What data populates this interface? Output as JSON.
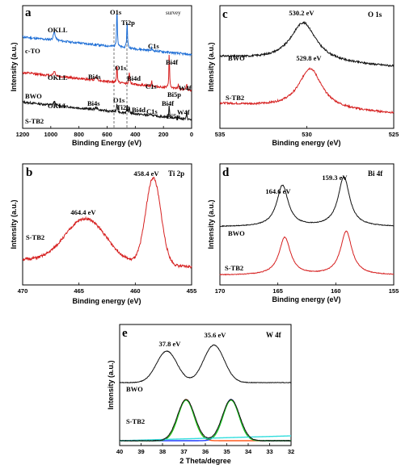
{
  "chart_data": [
    {
      "id": "a",
      "type": "line",
      "panel_label": "a",
      "corner_label": "survey",
      "xlabel": "Binding Energy (eV)",
      "ylabel": "Intensity (a.u.)",
      "xlim": [
        1200,
        0
      ],
      "ylim": [
        0,
        10
      ],
      "x_ticks": [
        1200,
        1000,
        800,
        600,
        400,
        200,
        0
      ],
      "reference_lines": [
        530,
        458
      ],
      "series": [
        {
          "name": "c-TO",
          "color": "#1f6fd6",
          "offset": 6.0,
          "peaks": [
            {
              "label": "OKLL",
              "x": 975,
              "height": 0.7
            },
            {
              "label": "O1s",
              "x": 530,
              "height": 3.3
            },
            {
              "label": "Ti2p",
              "x": 458,
              "height": 2.2
            },
            {
              "label": "C1s",
              "x": 284,
              "height": 0.3
            }
          ]
        },
        {
          "name": "BWO",
          "color": "#d62020",
          "offset": 3.1,
          "peaks": [
            {
              "label": "OKLL",
              "x": 975,
              "height": 0.4
            },
            {
              "label": "Bi4s",
              "x": 678,
              "height": 0.3
            },
            {
              "label": "O1s",
              "x": 530,
              "height": 1.5
            },
            {
              "label": "Bi4d",
              "x": 442,
              "height": 1.0
            },
            {
              "label": "C1s",
              "x": 284,
              "height": 0.5
            },
            {
              "label": "Bi4f",
              "x": 159,
              "height": 3.2
            },
            {
              "label": "Bi5p",
              "x": 95,
              "height": 0.4
            },
            {
              "label": "W4f",
              "x": 35,
              "height": 0.6
            }
          ]
        },
        {
          "name": "S-TB2",
          "color": "#111111",
          "offset": 0.7,
          "peaks": [
            {
              "label": "OKLL",
              "x": 975,
              "height": 0.3
            },
            {
              "label": "Bi4s",
              "x": 678,
              "height": 0.2
            },
            {
              "label": "O1s",
              "x": 530,
              "height": 0.7
            },
            {
              "label": "Ti2p",
              "x": 458,
              "height": 0.6
            },
            {
              "label": "Bi4d",
              "x": 442,
              "height": 0.5
            },
            {
              "label": "C1s",
              "x": 284,
              "height": 0.2
            },
            {
              "label": "Bi4f",
              "x": 159,
              "height": 1.1
            },
            {
              "label": "Bi5p",
              "x": 95,
              "height": 0.2
            },
            {
              "label": "W4f",
              "x": 35,
              "height": 0.6
            }
          ]
        }
      ]
    },
    {
      "id": "c",
      "type": "line",
      "panel_label": "c",
      "corner_label": "O 1s",
      "xlabel": "Binding energy (eV)",
      "ylabel": "Intensity (a.u.)",
      "xlim": [
        535,
        525
      ],
      "ylim": [
        0,
        10
      ],
      "x_ticks": [
        535,
        530,
        525
      ],
      "series": [
        {
          "name": "BWO",
          "color": "#111111",
          "offset": 5.0,
          "peak_x": 530.2,
          "peak_label": "530.2 eV",
          "width": 0.9,
          "height": 3.2
        },
        {
          "name": "S-TB2",
          "color": "#d62020",
          "offset": 1.2,
          "peak_x": 529.8,
          "peak_label": "529.8 eV",
          "width": 0.8,
          "height": 3.3
        }
      ]
    },
    {
      "id": "b",
      "type": "line",
      "panel_label": "b",
      "corner_label": "Ti 2p",
      "xlabel": "Binding energy (eV)",
      "ylabel": "Intensity (a.u.)",
      "xlim": [
        470,
        455
      ],
      "ylim": [
        0,
        10
      ],
      "x_ticks": [
        470,
        465,
        460,
        455
      ],
      "series": [
        {
          "name": "S-TB2",
          "color": "#d62020",
          "offset": 1.5,
          "peaks": [
            {
              "x": 464.4,
              "label": "464.4 eV",
              "width": 1.6,
              "height": 3.6
            },
            {
              "x": 458.4,
              "label": "458.4 eV",
              "width": 0.6,
              "height": 7.2
            }
          ]
        }
      ]
    },
    {
      "id": "d",
      "type": "line",
      "panel_label": "d",
      "corner_label": "Bi 4f",
      "xlabel": "Binding energy (eV)",
      "ylabel": "Intensity (a.u.)",
      "xlim": [
        170,
        155
      ],
      "ylim": [
        0,
        10
      ],
      "x_ticks": [
        170,
        165,
        160,
        155
      ],
      "series": [
        {
          "name": "BWO",
          "color": "#111111",
          "offset": 4.8,
          "peaks": [
            {
              "x": 164.6,
              "label": "164.6 eV",
              "width": 0.6,
              "height": 3.4
            },
            {
              "x": 159.3,
              "label": "159.3 eV",
              "width": 0.6,
              "height": 4.1
            }
          ]
        },
        {
          "name": "S-TB2",
          "color": "#d62020",
          "offset": 0.8,
          "peaks": [
            {
              "x": 164.4,
              "width": 0.6,
              "height": 3.1
            },
            {
              "x": 159.1,
              "width": 0.6,
              "height": 3.6
            }
          ]
        }
      ]
    },
    {
      "id": "e",
      "type": "line",
      "panel_label": "e",
      "corner_label": "W 4f",
      "xlabel": "2 Theta/degree",
      "ylabel": "Intensity (a.u.)",
      "xlim": [
        40,
        32
      ],
      "ylim": [
        0,
        10
      ],
      "x_ticks": [
        40,
        39,
        38,
        37,
        36,
        35,
        34,
        33,
        32
      ],
      "series": [
        {
          "name": "BWO",
          "color": "#111111",
          "offset": 5.2,
          "peaks": [
            {
              "x": 37.8,
              "label": "37.8 eV",
              "width": 0.45,
              "height": 2.6
            },
            {
              "x": 35.6,
              "label": "35.6 eV",
              "width": 0.45,
              "height": 3.1
            }
          ]
        },
        {
          "name": "S-TB2",
          "color": "#111111",
          "offset": 0.4,
          "peaks": [
            {
              "x": 36.9,
              "width": 0.38,
              "height": 3.4
            },
            {
              "x": 34.8,
              "width": 0.38,
              "height": 3.4
            }
          ]
        }
      ],
      "fit_components": [
        {
          "color": "#ff5a1f",
          "x": 36.9,
          "width": 0.38,
          "height": 3.4
        },
        {
          "color": "#1f3dff",
          "x": 34.8,
          "width": 0.38,
          "height": 3.4
        },
        {
          "color": "#22cc22",
          "x": [
            36.9,
            34.8
          ],
          "width": 0.38,
          "height": 3.35
        },
        {
          "color": "#33dddd",
          "type": "baseline",
          "level": 0.4
        }
      ]
    }
  ]
}
